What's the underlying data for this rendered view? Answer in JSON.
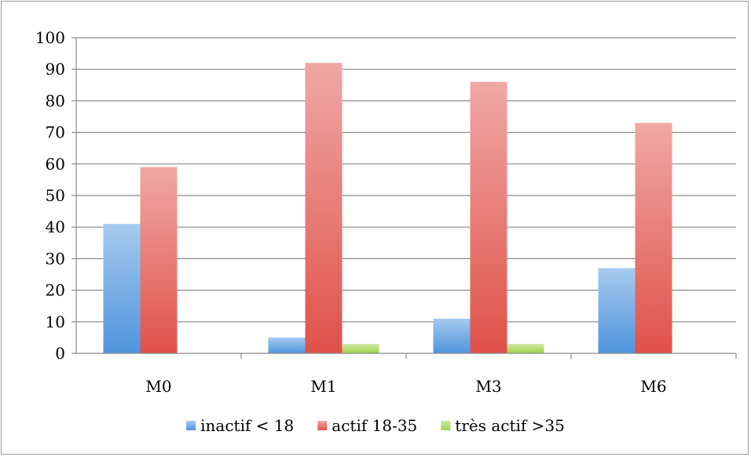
{
  "chart_data": {
    "type": "bar",
    "title": "",
    "xlabel": "",
    "ylabel": "",
    "categories": [
      "M0",
      "M1",
      "M3",
      "M6"
    ],
    "series": [
      {
        "name": "inactif < 18",
        "values": [
          41,
          5,
          11,
          27
        ],
        "color": "#4f94dd"
      },
      {
        "name": "actif 18-35",
        "values": [
          59,
          92,
          86,
          73
        ],
        "color": "#e0514a"
      },
      {
        "name": "très actif >35",
        "values": [
          0,
          3,
          3,
          0
        ],
        "color": "#9fd24a"
      }
    ],
    "ylim": [
      0,
      100
    ],
    "yticks": [
      0,
      10,
      20,
      30,
      40,
      50,
      60,
      70,
      80,
      90,
      100
    ],
    "grid": true,
    "legend_position": "bottom"
  }
}
